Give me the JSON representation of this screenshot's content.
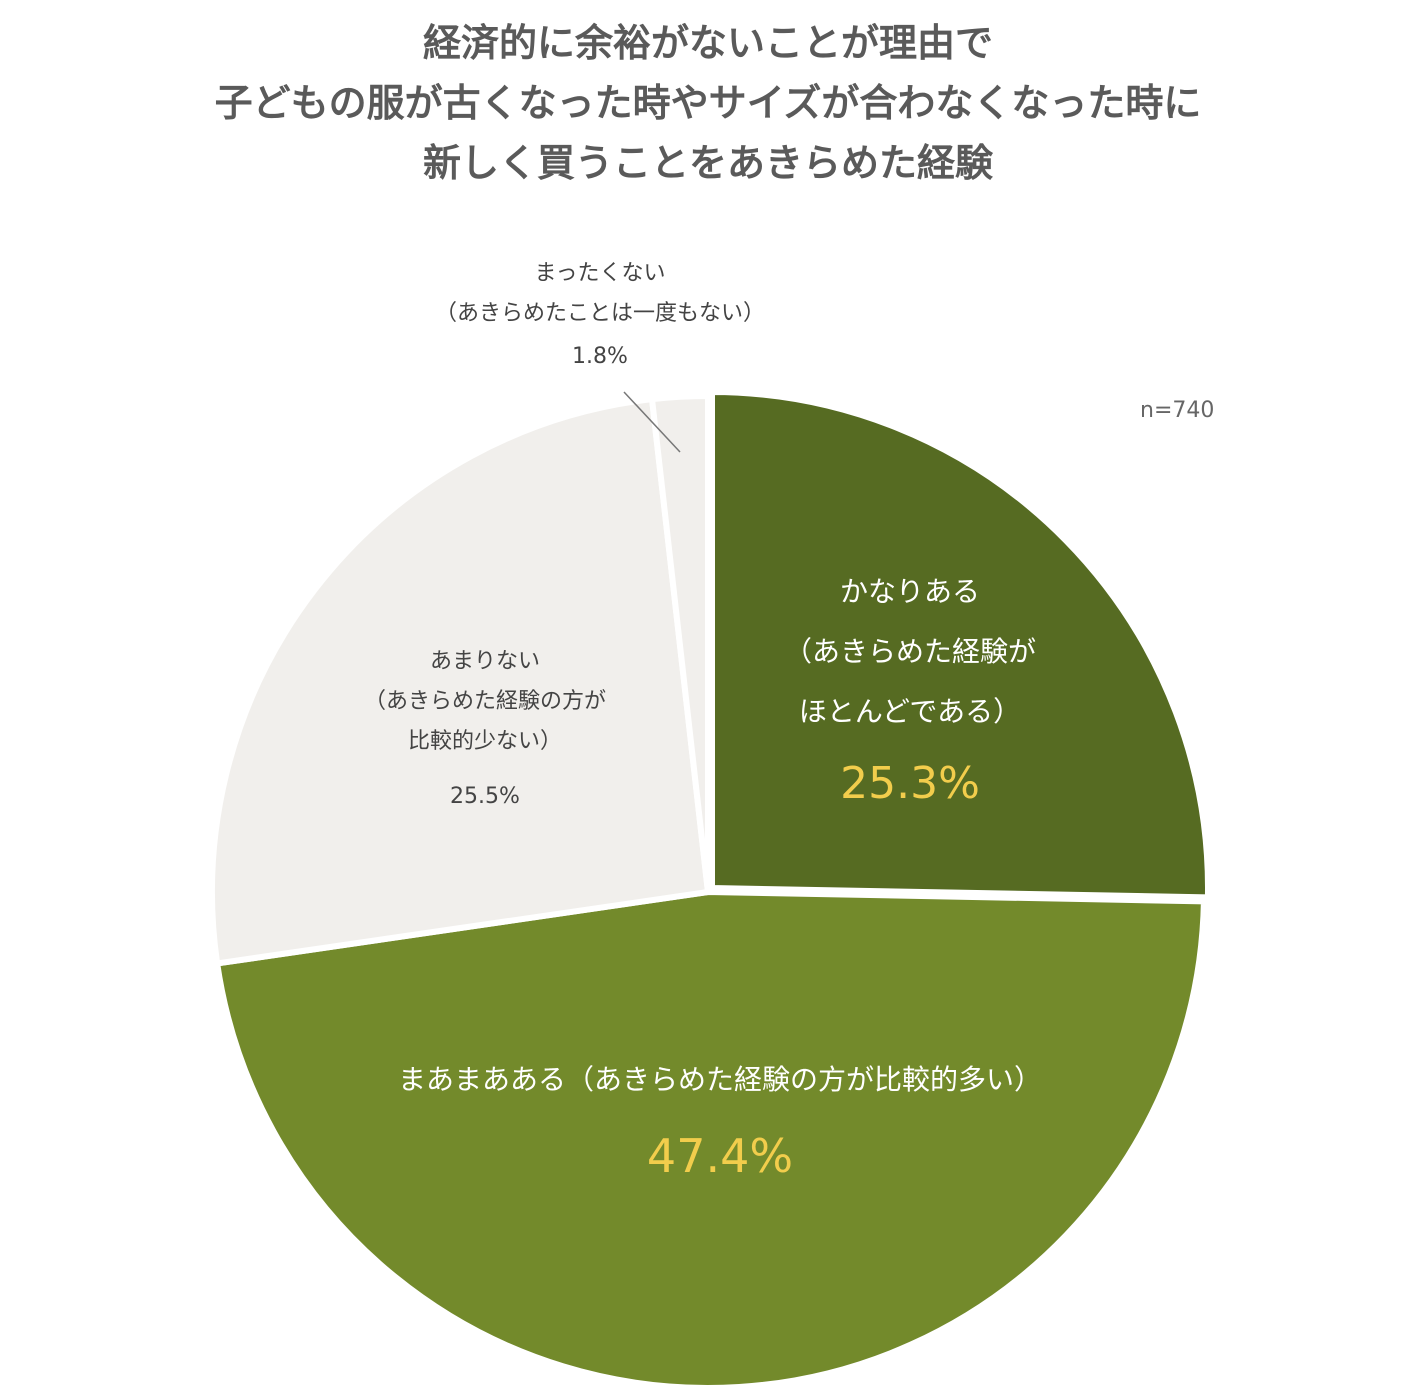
{
  "title_lines": [
    "経済的に余裕がないことが理由で",
    "子どもの服が古くなった時やサイズが合わなくなった時に",
    "新しく買うことをあきらめた経験"
  ],
  "sample_label": "n=740",
  "chart_data": {
    "type": "pie",
    "categories": [
      "かなりある（あきらめた経験がほとんどである）",
      "まあまあある（あきらめた経験の方が比較的多い）",
      "あまりない（あきらめた経験の方が比較的少ない）",
      "まったくない（あきらめたことは一度もない）"
    ],
    "values": [
      25.3,
      47.4,
      25.5,
      1.8
    ],
    "start": "12 o'clock",
    "direction": "clockwise",
    "colors": [
      "#566b22",
      "#738a2b",
      "#f1efec",
      "#f1efec"
    ],
    "exploded": [
      true,
      false,
      false,
      false
    ],
    "labels": [
      {
        "lines": [
          "かなりある",
          "（あきらめた経験が",
          "ほとんどである）"
        ],
        "value": "25.3%"
      },
      {
        "lines": [
          "まあまあある（あきらめた経験の方が比較的多い）"
        ],
        "value": "47.4%"
      },
      {
        "lines": [
          "あまりない",
          "（あきらめた経験の方が",
          "比較的少ない）"
        ],
        "value": "25.5%"
      },
      {
        "lines": [
          "まったくない",
          "（あきらめたことは一度もない）"
        ],
        "value": "1.8%"
      }
    ],
    "label_colors": {
      "inside_text": "#ffffff",
      "inside_value": "#f2cd4c",
      "outside_text": "#444444"
    }
  }
}
